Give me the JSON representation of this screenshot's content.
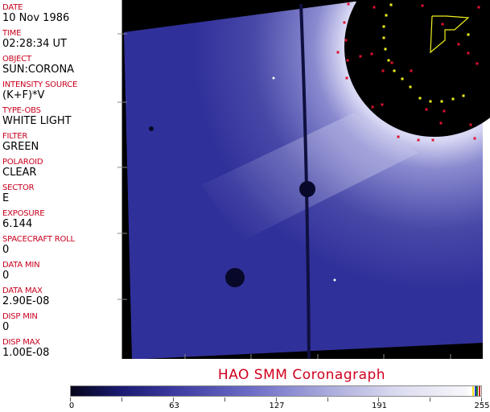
{
  "header_fields": [
    {
      "label": "DATE",
      "value": "10 Nov 1986"
    },
    {
      "label": "TIME",
      "value": "02:28:34 UT"
    },
    {
      "label": "OBJECT",
      "value": "SUN:CORONA"
    },
    {
      "label": "INTENSITY SOURCE",
      "value": "(K+F)*V"
    },
    {
      "label": "TYPE-OBS",
      "value": "WHITE LIGHT"
    },
    {
      "label": "FILTER",
      "value": "GREEN"
    },
    {
      "label": "POLAROID",
      "value": "CLEAR"
    },
    {
      "label": "SECTOR",
      "value": "E"
    },
    {
      "label": "EXPOSURE",
      "value": "6.144"
    },
    {
      "label": "SPACECRAFT ROLL",
      "value": "0"
    },
    {
      "label": "DATA MIN",
      "value": "0"
    },
    {
      "label": "DATA MAX",
      "value": "2.90E-08"
    },
    {
      "label": "DISP MIN",
      "value": "0"
    },
    {
      "label": "DISP MAX",
      "value": "1.00E-08"
    }
  ],
  "title": "HAO   SMM Coronagraph",
  "colorbar": {
    "ticks": [
      "0",
      "63",
      "127",
      "191",
      "255"
    ],
    "colors": {
      "low": "#05051a",
      "mid": "#7070c8",
      "high": "#ffffff"
    },
    "overlay_swatches": [
      "#f0e020",
      "#2040c0",
      "#208020",
      "#d02020"
    ]
  },
  "image": {
    "colors": {
      "background": "#000000",
      "corona": "#3a3aa0",
      "fiducial_red": "#e01030",
      "fiducial_yellow": "#f0f020"
    }
  }
}
